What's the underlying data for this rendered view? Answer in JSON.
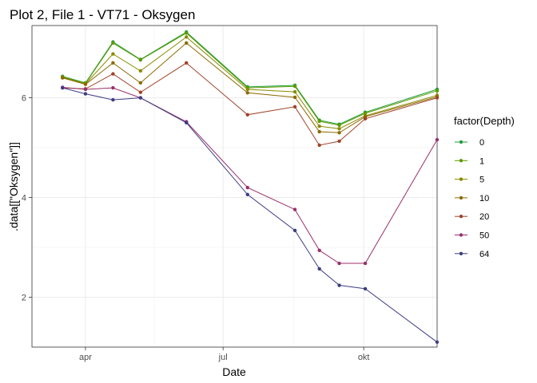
{
  "chart_data": {
    "type": "line",
    "title": "Plot 2, File 1 - VT71  -  Oksygen",
    "xlabel": "Date",
    "ylabel": ".data[[\"Oksygen\"]]",
    "x_ticks": [
      {
        "label": "apr",
        "day": 92
      },
      {
        "label": "jul",
        "day": 182
      },
      {
        "label": "okt",
        "day": 274
      }
    ],
    "xlim_day": [
      57,
      322
    ],
    "ylim": [
      1.0,
      7.45
    ],
    "y_ticks": [
      2,
      4,
      6
    ],
    "grid": true,
    "legend": {
      "title": "factor(Depth)",
      "position": "right"
    },
    "x_days": [
      77,
      92,
      110,
      128,
      158,
      198,
      229,
      245,
      258,
      275,
      322
    ],
    "series": [
      {
        "name": "0",
        "color": "#1e9e3a",
        "values": [
          6.43,
          6.3,
          7.12,
          6.77,
          7.32,
          6.22,
          6.25,
          5.55,
          5.47,
          5.71,
          6.17
        ]
      },
      {
        "name": "1",
        "color": "#5e9a00",
        "values": [
          6.42,
          6.29,
          7.1,
          6.76,
          7.3,
          6.2,
          6.23,
          5.53,
          5.45,
          5.69,
          6.14
        ]
      },
      {
        "name": "5",
        "color": "#8a8a00",
        "values": [
          6.41,
          6.28,
          6.88,
          6.54,
          7.22,
          6.17,
          6.12,
          5.43,
          5.38,
          5.64,
          6.05
        ]
      },
      {
        "name": "10",
        "color": "#8c6a00",
        "values": [
          6.4,
          6.27,
          6.7,
          6.3,
          7.1,
          6.1,
          6.01,
          5.32,
          5.3,
          5.62,
          6.02
        ]
      },
      {
        "name": "20",
        "color": "#a0442a",
        "values": [
          6.2,
          6.18,
          6.48,
          6.11,
          6.7,
          5.66,
          5.82,
          5.05,
          5.13,
          5.58,
          6.0
        ]
      },
      {
        "name": "50",
        "color": "#9a2f6a",
        "values": [
          6.21,
          6.17,
          6.2,
          6.0,
          5.52,
          4.2,
          3.76,
          2.94,
          2.68,
          2.68,
          5.16
        ]
      },
      {
        "name": "64",
        "color": "#3d3d85",
        "values": [
          6.2,
          6.08,
          5.96,
          6.0,
          5.5,
          4.06,
          3.34,
          2.57,
          2.24,
          2.17,
          1.1
        ]
      }
    ]
  }
}
